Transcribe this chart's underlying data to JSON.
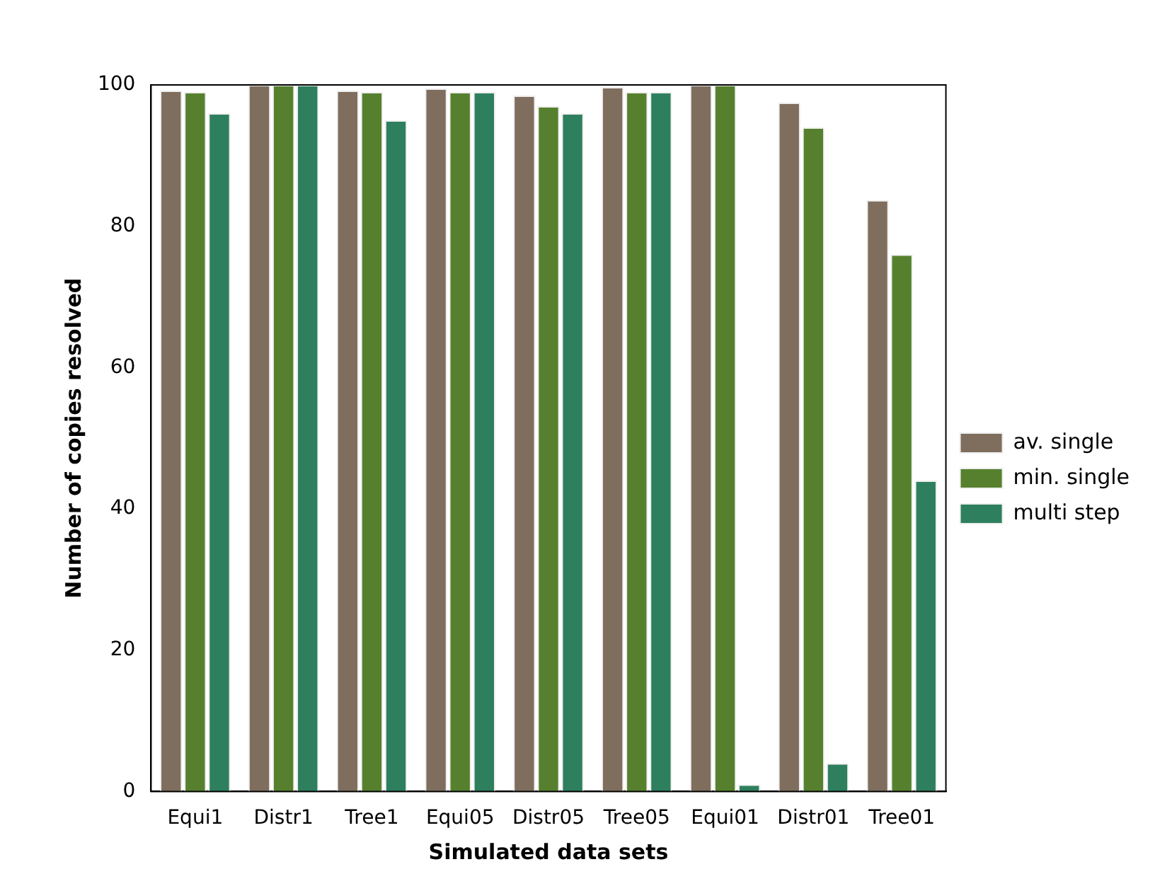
{
  "chart_data": {
    "type": "bar",
    "xlabel": "Simulated data sets",
    "ylabel": "Number of copies resolved",
    "categories": [
      "Equi1",
      "Distr1",
      "Tree1",
      "Equi05",
      "Distr05",
      "Tree05",
      "Equi01",
      "Distr01",
      "Tree01"
    ],
    "series": [
      {
        "name": "av. single",
        "color": "#7f6e5e",
        "values": [
          99.2,
          100,
          99.2,
          99.5,
          98.5,
          99.7,
          100,
          97.5,
          83.7
        ]
      },
      {
        "name": "min. single",
        "color": "#56802e",
        "values": [
          99,
          100,
          99,
          99,
          97,
          99,
          100,
          94,
          76
        ]
      },
      {
        "name": "multi step",
        "color": "#2e7f5e",
        "values": [
          96,
          100,
          95,
          99,
          96,
          99,
          1,
          4,
          44
        ]
      }
    ],
    "ylim": [
      0,
      100
    ],
    "yticks": [
      0,
      20,
      40,
      60,
      80,
      100
    ],
    "grid": false,
    "legend": "right"
  }
}
